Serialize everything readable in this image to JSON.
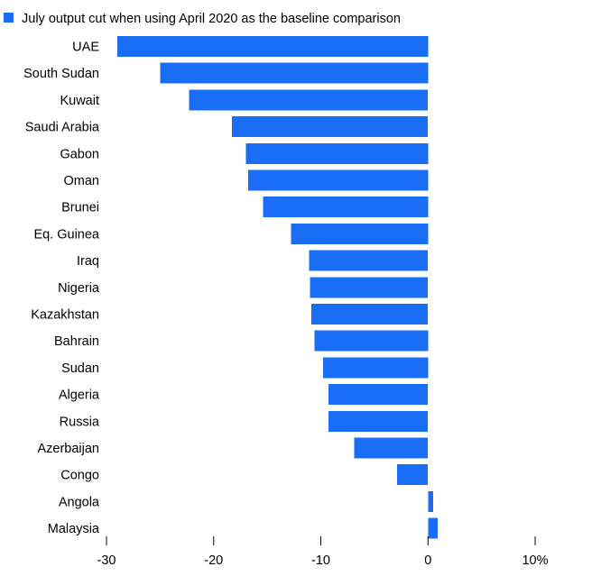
{
  "chart_data": {
    "type": "bar",
    "orientation": "horizontal",
    "legend": {
      "label": "July output cut when using April 2020 as the baseline comparison",
      "color": "#1a6ef5",
      "placement": "top-left"
    },
    "categories": [
      "UAE",
      "South Sudan",
      "Kuwait",
      "Saudi Arabia",
      "Gabon",
      "Oman",
      "Brunei",
      "Eq. Guinea",
      "Iraq",
      "Nigeria",
      "Kazakhstan",
      "Bahrain",
      "Sudan",
      "Algeria",
      "Russia",
      "Azerbaijan",
      "Congo",
      "Angola",
      "Malaysia"
    ],
    "series": [
      {
        "name": "July output cut when using April 2020 as the baseline comparison",
        "color": "#1a6ef5",
        "values": [
          -29,
          -25,
          -22.3,
          -18.3,
          -17,
          -16.8,
          -15.4,
          -12.8,
          -11.1,
          -11,
          -10.9,
          -10.6,
          -9.8,
          -9.3,
          -9.3,
          -6.9,
          -2.9,
          0.5,
          0.9
        ]
      }
    ],
    "xlim": [
      -30,
      10
    ],
    "xticks": [
      -30,
      -20,
      -10,
      0,
      10
    ],
    "xtick_labels": [
      "-30",
      "-20",
      "-10",
      "0",
      "10%"
    ],
    "grid": false
  }
}
